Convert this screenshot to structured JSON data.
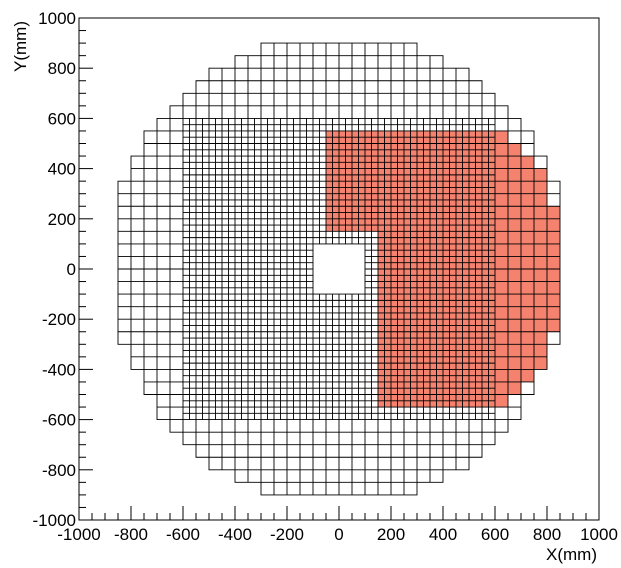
{
  "chart_data": {
    "type": "heatmap",
    "xlabel": "X(mm)",
    "ylabel": "Y(mm)",
    "xlim": [
      -1000,
      1000
    ],
    "ylim": [
      -1000,
      1000
    ],
    "grid": false,
    "x_ticks": [
      "-1000",
      "-800",
      "-600",
      "-400",
      "-200",
      "0",
      "200",
      "400",
      "600",
      "800",
      "1000"
    ],
    "y_ticks": [
      "-1000",
      "-800",
      "-600",
      "-400",
      "-200",
      "0",
      "200",
      "400",
      "600",
      "800",
      "1000"
    ],
    "outline_color": "#000000",
    "highlight_color": "#f4826f",
    "detector": {
      "outer_cell_size_mm": 50,
      "inner_cell_size_mm": 25,
      "fine_region_mm": {
        "x": [
          -600,
          600
        ],
        "y": [
          -600,
          600
        ]
      },
      "beam_hole_mm": {
        "x": [
          -100,
          100
        ],
        "y": [
          -100,
          100
        ]
      },
      "outer_rows_mm": [
        {
          "y": [
            850,
            900
          ],
          "x": [
            -300,
            300
          ]
        },
        {
          "y": [
            800,
            850
          ],
          "x": [
            -400,
            400
          ]
        },
        {
          "y": [
            750,
            800
          ],
          "x": [
            -500,
            500
          ]
        },
        {
          "y": [
            700,
            750
          ],
          "x": [
            -550,
            550
          ]
        },
        {
          "y": [
            650,
            700
          ],
          "x": [
            -600,
            600
          ]
        },
        {
          "y": [
            600,
            650
          ],
          "x": [
            -650,
            650
          ]
        },
        {
          "y": [
            550,
            600
          ],
          "x": [
            -700,
            700
          ]
        },
        {
          "y": [
            500,
            550
          ],
          "x": [
            -750,
            750
          ]
        },
        {
          "y": [
            450,
            500
          ],
          "x": [
            -750,
            750
          ]
        },
        {
          "y": [
            400,
            450
          ],
          "x": [
            -800,
            800
          ]
        },
        {
          "y": [
            350,
            400
          ],
          "x": [
            -800,
            800
          ]
        },
        {
          "y": [
            300,
            350
          ],
          "x": [
            -850,
            850
          ]
        },
        {
          "y": [
            250,
            300
          ],
          "x": [
            -850,
            850
          ]
        },
        {
          "y": [
            200,
            250
          ],
          "x": [
            -850,
            850
          ]
        },
        {
          "y": [
            150,
            200
          ],
          "x": [
            -850,
            850
          ]
        },
        {
          "y": [
            100,
            150
          ],
          "x": [
            -850,
            850
          ]
        },
        {
          "y": [
            50,
            100
          ],
          "x": [
            -850,
            850
          ]
        },
        {
          "y": [
            0,
            50
          ],
          "x": [
            -850,
            850
          ]
        },
        {
          "y": [
            -50,
            0
          ],
          "x": [
            -850,
            850
          ]
        },
        {
          "y": [
            -100,
            -50
          ],
          "x": [
            -850,
            850
          ]
        },
        {
          "y": [
            -150,
            -100
          ],
          "x": [
            -850,
            850
          ]
        },
        {
          "y": [
            -200,
            -150
          ],
          "x": [
            -850,
            850
          ]
        },
        {
          "y": [
            -250,
            -200
          ],
          "x": [
            -850,
            850
          ]
        },
        {
          "y": [
            -300,
            -250
          ],
          "x": [
            -850,
            850
          ]
        },
        {
          "y": [
            -350,
            -300
          ],
          "x": [
            -800,
            800
          ]
        },
        {
          "y": [
            -400,
            -350
          ],
          "x": [
            -800,
            800
          ]
        },
        {
          "y": [
            -450,
            -400
          ],
          "x": [
            -750,
            750
          ]
        },
        {
          "y": [
            -500,
            -450
          ],
          "x": [
            -750,
            750
          ]
        },
        {
          "y": [
            -550,
            -500
          ],
          "x": [
            -700,
            700
          ]
        },
        {
          "y": [
            -600,
            -550
          ],
          "x": [
            -700,
            700
          ]
        },
        {
          "y": [
            -650,
            -600
          ],
          "x": [
            -650,
            650
          ]
        },
        {
          "y": [
            -700,
            -650
          ],
          "x": [
            -600,
            600
          ]
        },
        {
          "y": [
            -750,
            -700
          ],
          "x": [
            -550,
            550
          ]
        },
        {
          "y": [
            -800,
            -750
          ],
          "x": [
            -500,
            500
          ]
        },
        {
          "y": [
            -850,
            -800
          ],
          "x": [
            -400,
            400
          ]
        },
        {
          "y": [
            -900,
            -850
          ],
          "x": [
            -300,
            300
          ]
        }
      ],
      "highlighted_regions_mm": [
        {
          "x": [
            -50,
            600
          ],
          "y": [
            150,
            550
          ]
        },
        {
          "x": [
            150,
            600
          ],
          "y": [
            -550,
            150
          ]
        },
        {
          "x": [
            600,
            650
          ],
          "y": [
            -550,
            550
          ]
        },
        {
          "x": [
            650,
            700
          ],
          "y": [
            -500,
            500
          ]
        },
        {
          "x": [
            700,
            750
          ],
          "y": [
            -450,
            450
          ]
        },
        {
          "x": [
            750,
            800
          ],
          "y": [
            -400,
            400
          ]
        },
        {
          "x": [
            800,
            850
          ],
          "y": [
            -250,
            250
          ]
        }
      ]
    }
  }
}
